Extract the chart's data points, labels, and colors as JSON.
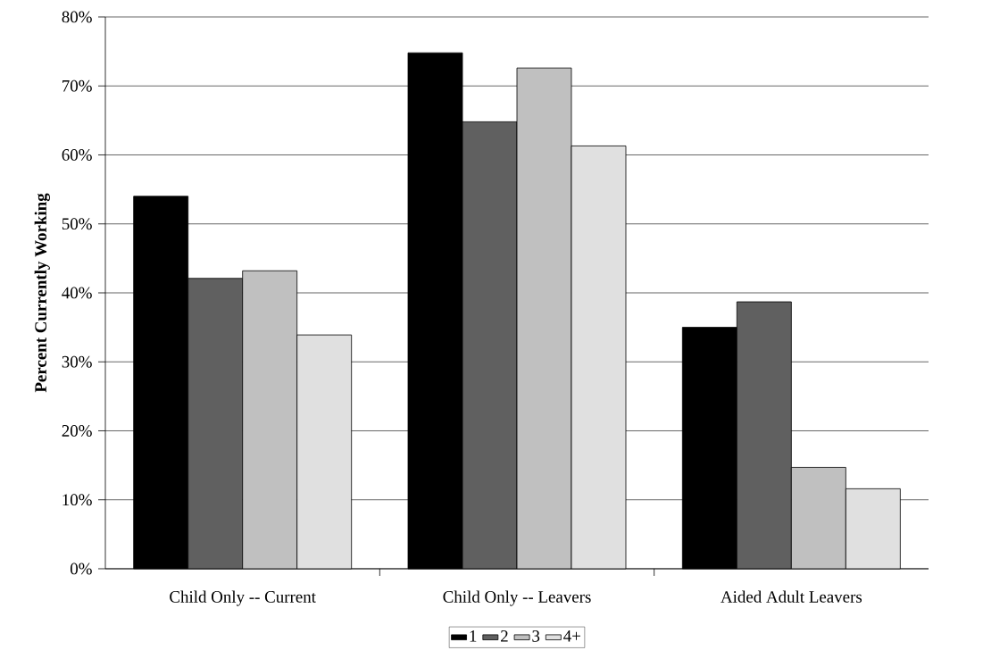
{
  "chart_data": {
    "type": "bar",
    "ylabel": "Percent Currently Working",
    "categories": [
      "Child Only -- Current",
      "Child Only -- Leavers",
      "Aided Adult Leavers"
    ],
    "series": [
      {
        "name": "1",
        "color": "#000000",
        "values": [
          54,
          74.8,
          35
        ]
      },
      {
        "name": "2",
        "color": "#606060",
        "values": [
          42.1,
          64.8,
          38.7
        ]
      },
      {
        "name": "3",
        "color": "#c0c0c0",
        "values": [
          43.2,
          72.6,
          14.7
        ]
      },
      {
        "name": "4+",
        "color": "#e0e0e0",
        "values": [
          33.9,
          61.3,
          11.6
        ]
      }
    ],
    "ylim": [
      0,
      80
    ],
    "yticks": [
      {
        "value": 0,
        "label": "0%"
      },
      {
        "value": 10,
        "label": "10%"
      },
      {
        "value": 20,
        "label": "20%"
      },
      {
        "value": 30,
        "label": "30%"
      },
      {
        "value": 40,
        "label": "40%"
      },
      {
        "value": 50,
        "label": "50%"
      },
      {
        "value": 60,
        "label": "60%"
      },
      {
        "value": 70,
        "label": "70%"
      },
      {
        "value": 80,
        "label": "80%"
      }
    ],
    "grid": "y",
    "legend": "bottom"
  }
}
